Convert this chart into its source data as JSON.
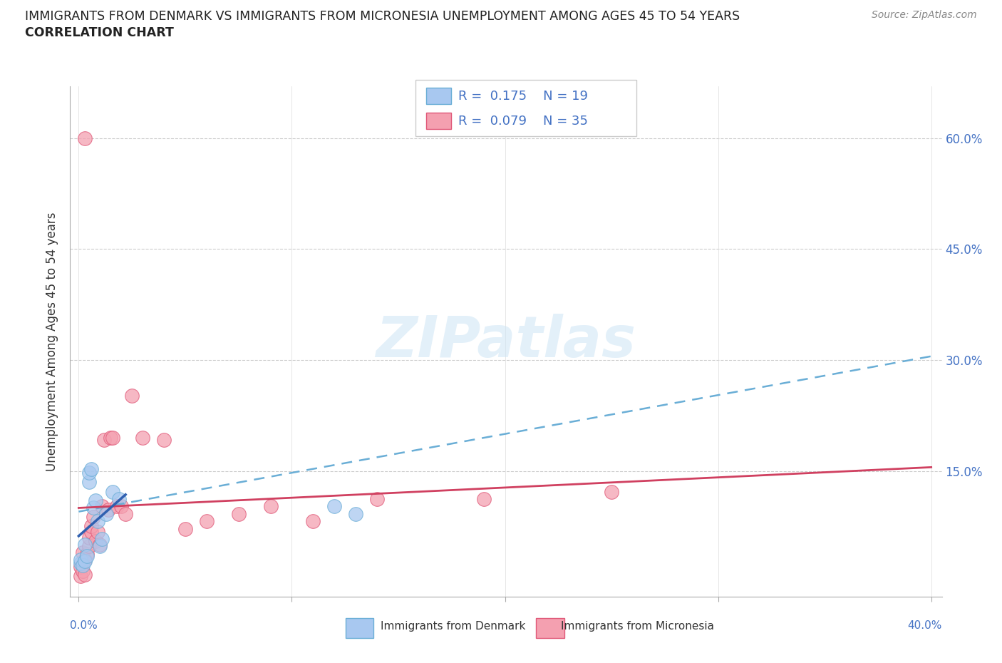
{
  "title_line1": "IMMIGRANTS FROM DENMARK VS IMMIGRANTS FROM MICRONESIA UNEMPLOYMENT AMONG AGES 45 TO 54 YEARS",
  "title_line2": "CORRELATION CHART",
  "source_text": "Source: ZipAtlas.com",
  "ylabel": "Unemployment Among Ages 45 to 54 years",
  "denmark_R": 0.175,
  "denmark_N": 19,
  "micronesia_R": 0.079,
  "micronesia_N": 35,
  "denmark_color": "#a8c8f0",
  "micronesia_color": "#f4a0b0",
  "denmark_edge_color": "#6aaed6",
  "micronesia_edge_color": "#e05878",
  "denmark_line_color": "#6aaed6",
  "micronesia_line_color": "#d04060",
  "label_color": "#4472c4",
  "legend_label_denmark": "Immigrants from Denmark",
  "legend_label_micronesia": "Immigrants from Micronesia",
  "xlim": [
    -0.004,
    0.405
  ],
  "ylim": [
    -0.02,
    0.67
  ],
  "ytick_vals": [
    0.15,
    0.3,
    0.45,
    0.6
  ],
  "ytick_labels": [
    "15.0%",
    "30.0%",
    "45.0%",
    "60.0%"
  ],
  "xtick_vals": [
    0.0,
    0.1,
    0.2,
    0.3,
    0.4
  ],
  "watermark_text": "ZIPatlas",
  "background_color": "#ffffff",
  "grid_color": "#cccccc",
  "dk_x": [
    0.001,
    0.001,
    0.002,
    0.003,
    0.003,
    0.004,
    0.005,
    0.005,
    0.006,
    0.007,
    0.008,
    0.009,
    0.01,
    0.011,
    0.013,
    0.016,
    0.019,
    0.12,
    0.13
  ],
  "dk_y": [
    0.025,
    0.03,
    0.022,
    0.028,
    0.05,
    0.035,
    0.135,
    0.148,
    0.152,
    0.1,
    0.11,
    0.082,
    0.048,
    0.058,
    0.092,
    0.122,
    0.112,
    0.102,
    0.092
  ],
  "mc_x": [
    0.001,
    0.001,
    0.002,
    0.002,
    0.003,
    0.003,
    0.004,
    0.005,
    0.005,
    0.006,
    0.006,
    0.007,
    0.008,
    0.009,
    0.01,
    0.011,
    0.012,
    0.014,
    0.015,
    0.016,
    0.018,
    0.02,
    0.022,
    0.025,
    0.03,
    0.04,
    0.05,
    0.06,
    0.075,
    0.09,
    0.11,
    0.14,
    0.19,
    0.25,
    0.003
  ],
  "mc_y": [
    0.008,
    0.02,
    0.015,
    0.04,
    0.03,
    0.6,
    0.038,
    0.048,
    0.06,
    0.068,
    0.075,
    0.088,
    0.055,
    0.068,
    0.05,
    0.102,
    0.192,
    0.098,
    0.195,
    0.195,
    0.102,
    0.102,
    0.092,
    0.252,
    0.195,
    0.192,
    0.072,
    0.082,
    0.092,
    0.102,
    0.082,
    0.112,
    0.112,
    0.122,
    0.01
  ],
  "dk_trend_x": [
    0.0,
    0.4
  ],
  "dk_trend_y": [
    0.095,
    0.305
  ],
  "mc_trend_x": [
    0.0,
    0.4
  ],
  "mc_trend_y": [
    0.1,
    0.155
  ]
}
